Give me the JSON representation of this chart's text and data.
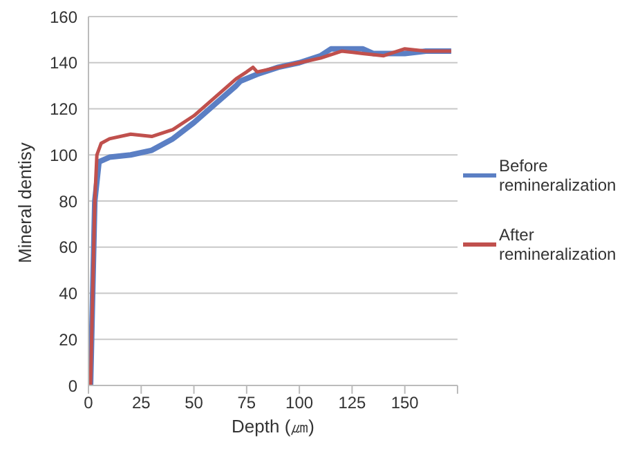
{
  "chart_data": {
    "type": "line",
    "xlabel": "Depth (㎛)",
    "ylabel": "Mineral dentisy",
    "xlim": [
      0,
      175
    ],
    "ylim": [
      0,
      160
    ],
    "xticks": [
      0,
      25,
      50,
      75,
      100,
      125,
      150,
      {
        "value": 175,
        "label": null
      }
    ],
    "yticks": [
      0,
      20,
      40,
      60,
      80,
      100,
      120,
      140,
      160
    ],
    "grid": "y",
    "legend": "right",
    "marker": "none",
    "line_style": "solid",
    "series": [
      {
        "name": "Before remineralization",
        "color": "#5b7fc4",
        "x": [
          1,
          3,
          5,
          10,
          20,
          30,
          40,
          50,
          60,
          70,
          72,
          80,
          90,
          100,
          110,
          115,
          130,
          135,
          150,
          160,
          172
        ],
        "values": [
          0,
          80,
          97,
          99,
          100,
          102,
          107,
          114,
          122,
          130,
          132,
          135,
          138,
          140,
          143,
          146,
          146,
          144,
          144,
          145,
          145
        ]
      },
      {
        "name": "After remineralization",
        "color": "#c0504d",
        "x": [
          1,
          3,
          4,
          6,
          10,
          20,
          30,
          40,
          50,
          60,
          70,
          75,
          78,
          80,
          90,
          100,
          110,
          120,
          130,
          140,
          150,
          160,
          172
        ],
        "values": [
          0,
          80,
          100,
          105,
          107,
          109,
          108,
          111,
          117,
          125,
          133,
          136,
          138,
          136,
          138,
          140,
          142,
          145,
          144,
          143,
          146,
          145,
          145
        ]
      }
    ]
  }
}
